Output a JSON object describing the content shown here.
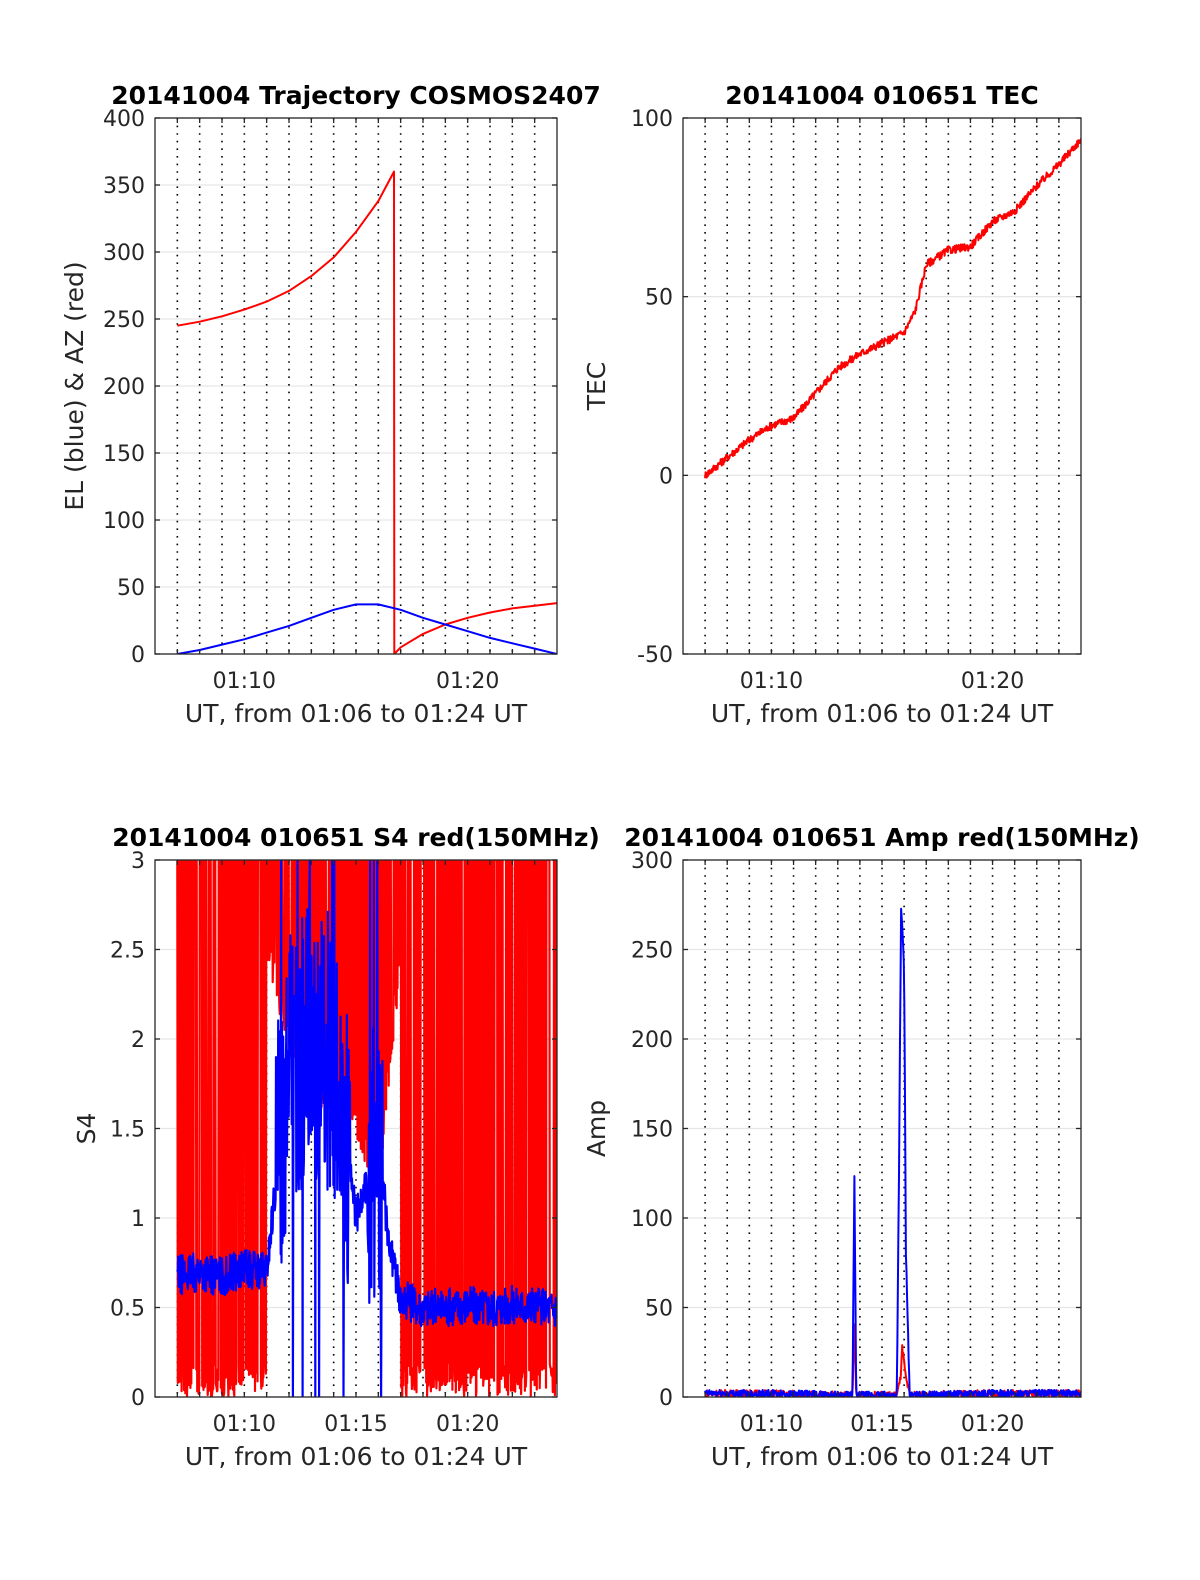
{
  "figure": {
    "date": "20141004",
    "time_window": "01:06 to 01:24 UT"
  },
  "chart_data": [
    {
      "id": "trajectory",
      "type": "line",
      "title": "20141004 Trajectory COSMOS2407",
      "xlabel": "UT, from 01:06 to 01:24 UT",
      "ylabel": "EL (blue) & AZ (red)",
      "xlim": [
        "01:06",
        "01:24"
      ],
      "ylim": [
        0,
        400
      ],
      "yticks": [
        0,
        50,
        100,
        150,
        200,
        250,
        300,
        350,
        400
      ],
      "xticks": [
        "01:10",
        "01:20"
      ],
      "grid": true,
      "series": [
        {
          "color": "#ff0000",
          "x": [
            "01:07",
            "01:08",
            "01:09",
            "01:10",
            "01:11",
            "01:12",
            "01:13",
            "01:14",
            "01:15",
            "01:16",
            "01:16:42",
            "01:16:43",
            "01:17",
            "01:18",
            "01:19",
            "01:20",
            "01:21",
            "01:22",
            "01:23",
            "01:24"
          ],
          "y": [
            245,
            248,
            252,
            257,
            263,
            271,
            282,
            296,
            315,
            338,
            360,
            0,
            5,
            15,
            22,
            27,
            31,
            34,
            36,
            38
          ]
        },
        {
          "color": "#0000ff",
          "x": [
            "01:07",
            "01:08",
            "01:09",
            "01:10",
            "01:11",
            "01:12",
            "01:13",
            "01:14",
            "01:15",
            "01:16",
            "01:17",
            "01:18",
            "01:19",
            "01:20",
            "01:21",
            "01:22",
            "01:23",
            "01:24"
          ],
          "y": [
            0,
            3,
            7,
            11,
            16,
            21,
            27,
            33,
            37,
            37,
            33,
            27,
            22,
            17,
            12,
            8,
            4,
            0
          ]
        }
      ]
    },
    {
      "id": "tec",
      "type": "line",
      "title": "20141004 010651 TEC",
      "xlabel": "UT, from 01:06 to 01:24 UT",
      "ylabel": "TEC",
      "xlim": [
        "01:06",
        "01:24"
      ],
      "ylim": [
        -50,
        100
      ],
      "yticks": [
        -50,
        0,
        50,
        100
      ],
      "xticks": [
        "01:10",
        "01:20"
      ],
      "grid": true,
      "series": [
        {
          "color": "#ff0000",
          "x": [
            "01:07",
            "01:08",
            "01:09",
            "01:10",
            "01:11",
            "01:12",
            "01:13",
            "01:14",
            "01:15",
            "01:16",
            "01:16:30",
            "01:17",
            "01:18",
            "01:19",
            "01:20",
            "01:21",
            "01:22",
            "01:23",
            "01:24"
          ],
          "y": [
            0,
            5,
            10,
            14,
            16,
            23,
            30,
            34,
            37,
            40,
            46,
            59,
            63,
            64,
            71,
            74,
            81,
            87,
            94
          ]
        }
      ]
    },
    {
      "id": "s4",
      "type": "line",
      "title": "20141004 010651 S4 red(150MHz)",
      "xlabel": "UT, from 01:06 to 01:24 UT",
      "ylabel": "S4",
      "xlim": [
        "01:06",
        "01:24"
      ],
      "ylim": [
        0,
        3
      ],
      "yticks": [
        0,
        0.5,
        1,
        1.5,
        2,
        2.5,
        3
      ],
      "xticks": [
        "01:10",
        "01:15",
        "01:20"
      ],
      "grid": true,
      "series": [
        {
          "color": "#ff0000",
          "x": [
            "01:07",
            "01:08",
            "01:09",
            "01:10",
            "01:11",
            "01:12",
            "01:13",
            "01:14",
            "01:15",
            "01:16",
            "01:17",
            "01:18",
            "01:19",
            "01:20",
            "01:21",
            "01:22",
            "01:23",
            "01:24"
          ],
          "y": [
            3.0,
            3.0,
            3.0,
            3.0,
            3.0,
            2.4,
            2.1,
            1.9,
            1.8,
            1.4,
            3.0,
            3.0,
            3.0,
            3.0,
            3.0,
            3.0,
            3.0,
            3.0
          ]
        },
        {
          "color": "#0000ff",
          "x": [
            "01:07",
            "01:08",
            "01:09",
            "01:10",
            "01:11",
            "01:12",
            "01:13",
            "01:14",
            "01:15",
            "01:16",
            "01:16:30",
            "01:17",
            "01:18",
            "01:19",
            "01:20",
            "01:21",
            "01:22",
            "01:23",
            "01:24"
          ],
          "y": [
            0.68,
            0.7,
            0.67,
            0.72,
            0.7,
            1.9,
            2.0,
            1.9,
            1.0,
            1.4,
            0.85,
            0.55,
            0.5,
            0.5,
            0.52,
            0.5,
            0.52,
            0.5,
            0.5
          ]
        }
      ]
    },
    {
      "id": "amp",
      "type": "line",
      "title": "20141004 010651 Amp red(150MHz)",
      "xlabel": "UT, from 01:06 to 01:24 UT",
      "ylabel": "Amp",
      "xlim": [
        "01:06",
        "01:24"
      ],
      "ylim": [
        0,
        300
      ],
      "yticks": [
        0,
        50,
        100,
        150,
        200,
        250,
        300
      ],
      "xticks": [
        "01:10",
        "01:15",
        "01:20"
      ],
      "grid": true,
      "series": [
        {
          "color": "#ff0000",
          "x": [
            "01:07",
            "01:10",
            "01:13:30",
            "01:13:40",
            "01:13:45",
            "01:13:50",
            "01:15:40",
            "01:15:50",
            "01:15:55",
            "01:16:05",
            "01:16:15",
            "01:20",
            "01:24"
          ],
          "y": [
            2,
            2,
            1,
            1,
            40,
            1,
            1,
            10,
            28,
            10,
            1,
            2,
            2
          ]
        },
        {
          "color": "#0000ff",
          "x": [
            "01:07",
            "01:10",
            "01:13:30",
            "01:13:40",
            "01:13:45",
            "01:13:50",
            "01:15:40",
            "01:15:45",
            "01:15:52",
            "01:16:00",
            "01:16:05",
            "01:16:15",
            "01:20",
            "01:24"
          ],
          "y": [
            2,
            2,
            1,
            1,
            124,
            1,
            1,
            100,
            275,
            240,
            80,
            1,
            2,
            2
          ]
        }
      ]
    }
  ]
}
